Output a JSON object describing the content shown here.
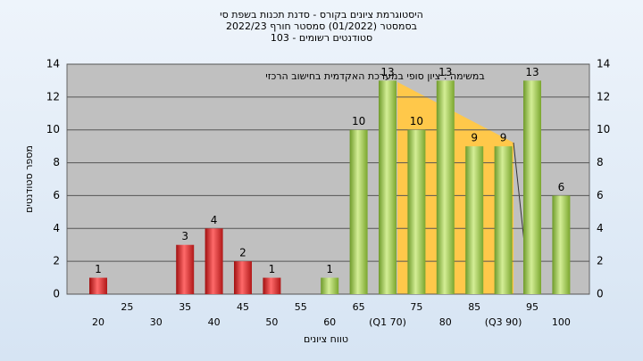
{
  "chart_data": {
    "type": "bar",
    "title": "היסטוגרמת ציונים בקורס - סדנת תכנות בשפת סי",
    "subtitle": "בסמסטר  (01/2022)  סמסטר חורף 2022/23",
    "subtitle2": "סטודנטים רשומים - 103",
    "annotation": "במשימה : ציון סופי במערכת האקדמית בחישוב הרכזי",
    "x_label": "טווח ציונים",
    "y_label": "מספר סטודנטים",
    "categories": [
      "20",
      "25",
      "30",
      "35",
      "40",
      "45",
      "50",
      "55",
      "60",
      "65",
      "(Q1 70)",
      "75",
      "80",
      "85",
      "(Q3 90)",
      "95",
      "100"
    ],
    "values": [
      1,
      0,
      0,
      3,
      4,
      2,
      1,
      0,
      1,
      10,
      13,
      10,
      13,
      9,
      9,
      13,
      6
    ],
    "colors": [
      "red",
      "red",
      "red",
      "red",
      "red",
      "red",
      "red",
      "red",
      "green",
      "green",
      "green",
      "green",
      "green",
      "green",
      "green",
      "green",
      "green"
    ],
    "ylim": [
      0,
      14
    ],
    "yticks": [
      0,
      2,
      4,
      6,
      8,
      10,
      12,
      14
    ],
    "grid": true
  }
}
